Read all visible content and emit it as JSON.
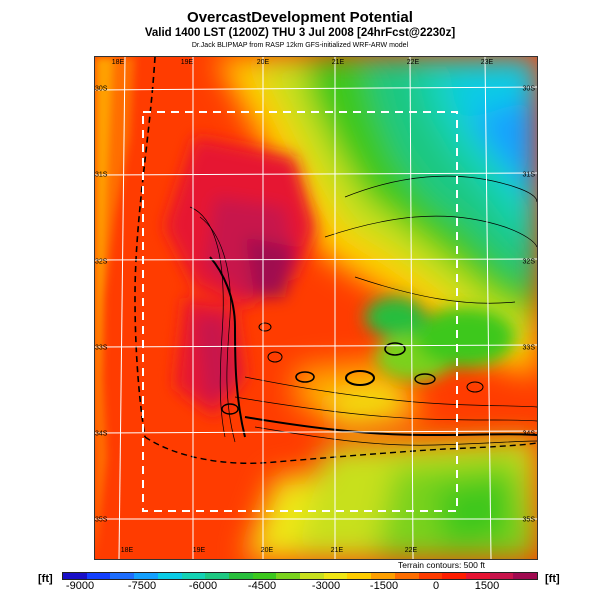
{
  "header": {
    "title": "OvercastDevelopment Potential",
    "valid": "Valid 1400 LST (1200Z) THU 3 Jul 2008 [24hrFcst@2230z]",
    "credit": "Dr.Jack BLIPMAP from RASP 12km GFS-initialized WRF-ARW model"
  },
  "map": {
    "top_lon_labels": [
      "18E",
      "19E",
      "20E",
      "21E",
      "22E",
      "23E"
    ],
    "bottom_lon_labels": [
      "18E",
      "19E",
      "20E",
      "21E",
      "22E"
    ],
    "left_lat_labels": [
      "30S",
      "31S",
      "32S",
      "33S",
      "34S",
      "35S"
    ],
    "right_lat_labels": [
      "30S",
      "31S",
      "32S",
      "33S",
      "34S",
      "35S"
    ],
    "contour_note": "Terrain contours: 500 ft"
  },
  "colorbar": {
    "unit_label": "[ft]",
    "tick_labels": [
      "-9000",
      "-7500",
      "-6000",
      "-4500",
      "-3000",
      "-1500",
      "0",
      "1500"
    ],
    "colors": [
      "#1a10c8",
      "#1440ff",
      "#1e6eff",
      "#14a0ff",
      "#0acbe6",
      "#14d2b4",
      "#1ec882",
      "#28be3c",
      "#3cc81e",
      "#7ad21e",
      "#c8e01e",
      "#f0e614",
      "#ffcd00",
      "#ffa000",
      "#ff6e00",
      "#ff3c00",
      "#ff1e00",
      "#e61432",
      "#c8144b",
      "#a00a50"
    ]
  }
}
